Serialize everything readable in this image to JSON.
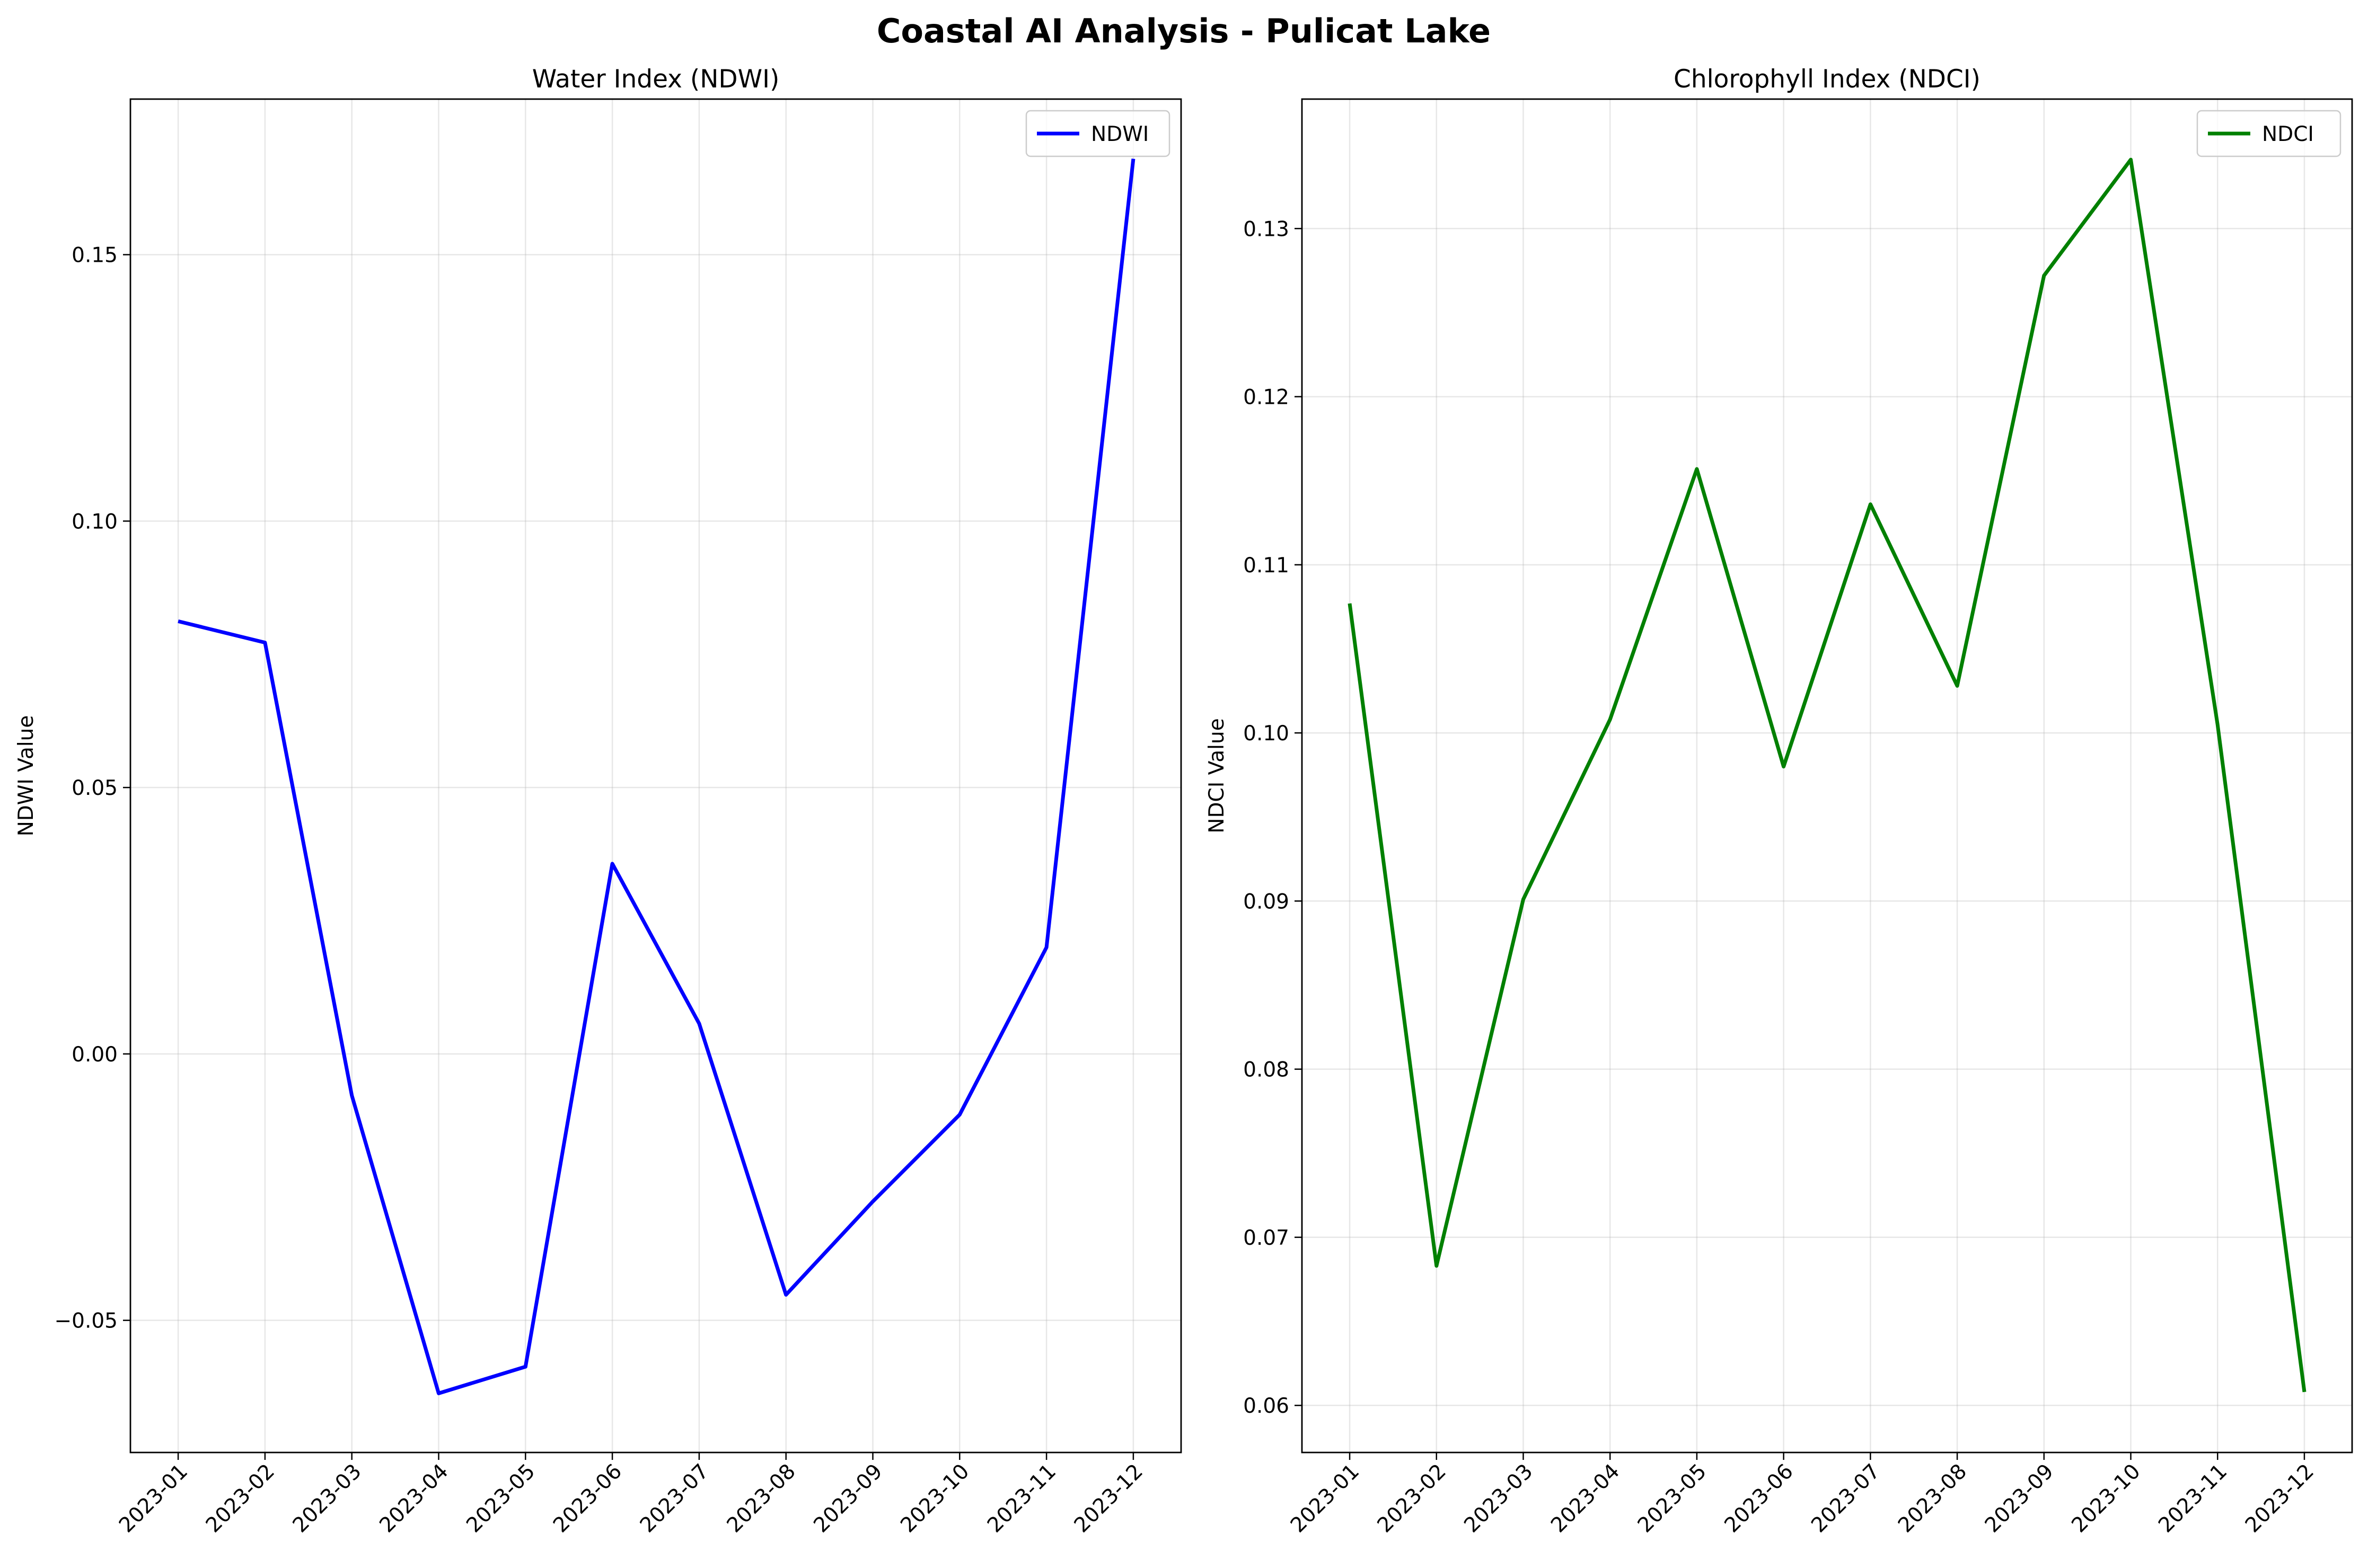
{
  "figure": {
    "suptitle": "Coastal AI Analysis - Pulicat Lake"
  },
  "chart_data": [
    {
      "type": "line",
      "title": "Water Index (NDWI)",
      "xlabel": "",
      "ylabel": "NDWI Value",
      "x": [
        "2023-01",
        "2023-02",
        "2023-03",
        "2023-04",
        "2023-05",
        "2023-06",
        "2023-07",
        "2023-08",
        "2023-09",
        "2023-10",
        "2023-11",
        "2023-12"
      ],
      "series": [
        {
          "name": "NDWI",
          "color": "#0000ff",
          "values": [
            0.0812,
            0.0772,
            -0.0078,
            -0.0637,
            -0.0587,
            0.0357,
            0.0057,
            -0.0452,
            -0.0277,
            -0.0114,
            0.02,
            0.168
          ]
        }
      ],
      "ylim": [
        -0.0748,
        0.1792
      ],
      "yticks": [
        -0.05,
        0.0,
        0.05,
        0.1,
        0.15
      ],
      "ytick_labels": [
        "−0.05",
        "0.00",
        "0.05",
        "0.10",
        "0.15"
      ],
      "grid": true,
      "legend": "upper right"
    },
    {
      "type": "line",
      "title": "Chlorophyll Index (NDCI)",
      "xlabel": "",
      "ylabel": "NDCI Value",
      "x": [
        "2023-01",
        "2023-02",
        "2023-03",
        "2023-04",
        "2023-05",
        "2023-06",
        "2023-07",
        "2023-08",
        "2023-09",
        "2023-10",
        "2023-11",
        "2023-12"
      ],
      "series": [
        {
          "name": "NDCI",
          "color": "#008000",
          "values": [
            0.1077,
            0.0683,
            0.0901,
            0.1008,
            0.1157,
            0.098,
            0.1136,
            0.1028,
            0.1272,
            0.1341,
            0.1005,
            0.0608
          ]
        }
      ],
      "ylim": [
        0.0572,
        0.1377
      ],
      "yticks": [
        0.06,
        0.07,
        0.08,
        0.09,
        0.1,
        0.11,
        0.12,
        0.13
      ],
      "ytick_labels": [
        "0.06",
        "0.07",
        "0.08",
        "0.09",
        "0.10",
        "0.11",
        "0.12",
        "0.13"
      ],
      "grid": true,
      "legend": "upper right"
    }
  ]
}
